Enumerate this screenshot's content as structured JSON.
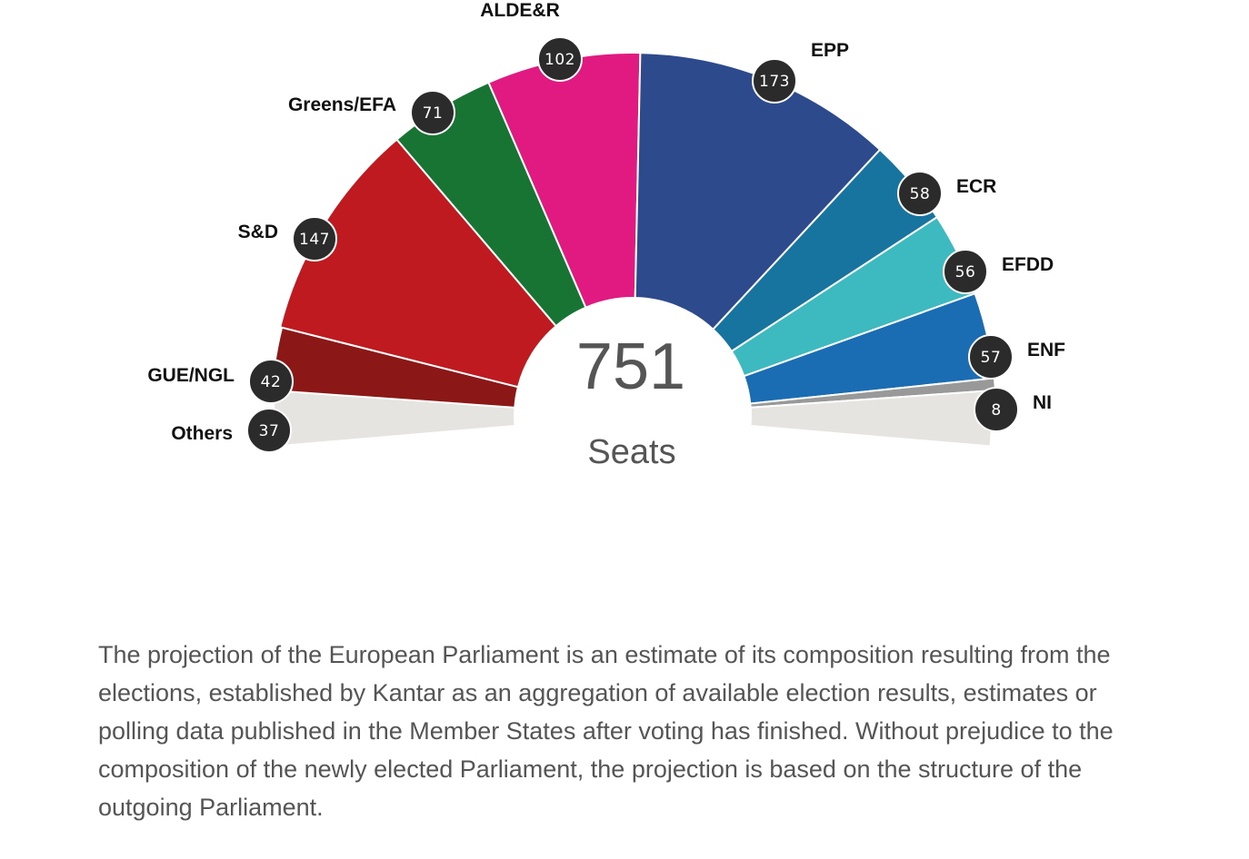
{
  "chart_data": {
    "type": "pie",
    "variant": "parliament-hemicycle",
    "total": "751",
    "total_label": "Seats",
    "series": [
      {
        "name": "Others",
        "seats": 37,
        "color": "#e6e4e0"
      },
      {
        "name": "GUE/NGL",
        "seats": 42,
        "color": "#8b1817"
      },
      {
        "name": "S&D",
        "seats": 147,
        "color": "#bf1a20"
      },
      {
        "name": "Greens/EFA",
        "seats": 71,
        "color": "#177433"
      },
      {
        "name": "ALDE&R",
        "seats": 102,
        "color": "#e01a80"
      },
      {
        "name": "EPP",
        "seats": 173,
        "color": "#2d4a8c"
      },
      {
        "name": "ECR",
        "seats": 58,
        "color": "#16749e"
      },
      {
        "name": "EFDD",
        "seats": 56,
        "color": "#3dbac0"
      },
      {
        "name": "ENF",
        "seats": 57,
        "color": "#1a6cb3"
      },
      {
        "name": "NI",
        "seats": 8,
        "color": "#999999"
      },
      {
        "name": "",
        "seats": 37,
        "color": "#e6e4e0"
      }
    ]
  },
  "caption": "The projection of the European Parliament is an estimate of its composition resulting from the elections, established by Kantar as an aggregation of available election results, estimates or polling data published in the Member States after voting has finished. Without prejudice to the composition of the newly elected Parliament, the projection is based on the structure of the outgoing Parliament."
}
